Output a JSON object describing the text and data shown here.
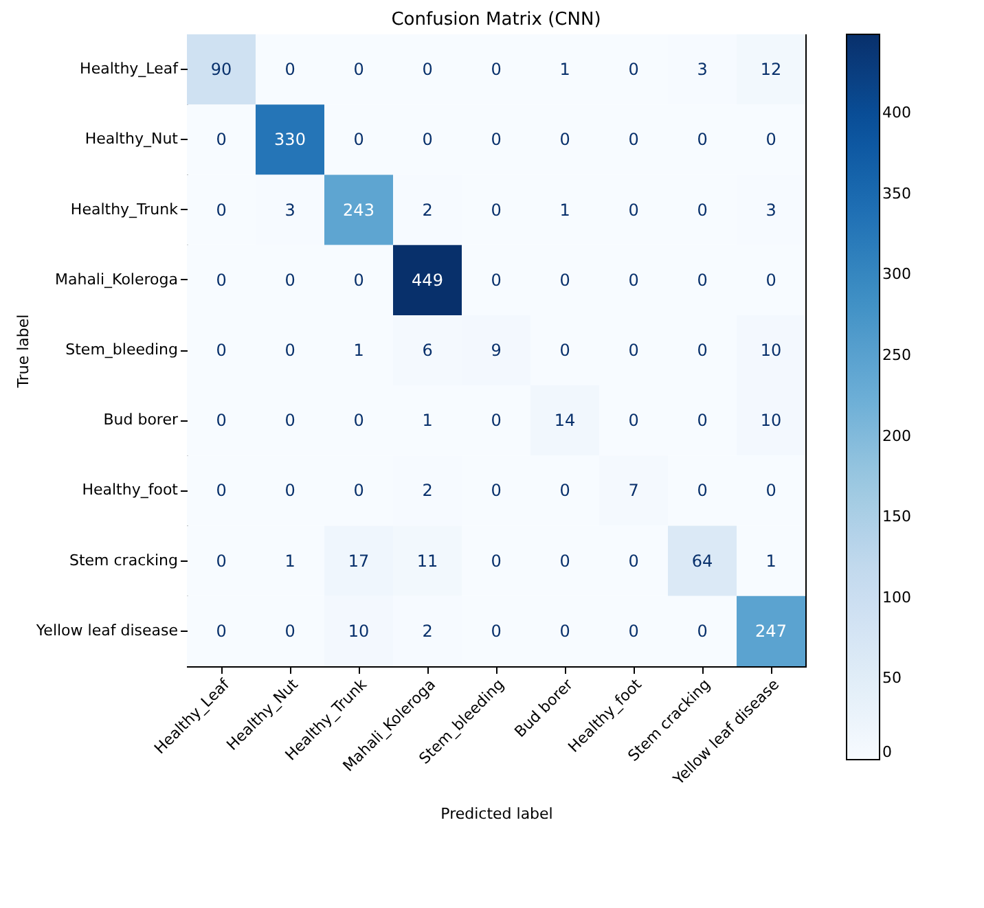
{
  "chart_data": {
    "type": "heatmap",
    "title": "Confusion Matrix (CNN)",
    "xlabel": "Predicted label",
    "ylabel": "True label",
    "categories": [
      "Healthy_Leaf",
      "Healthy_Nut",
      "Healthy_Trunk",
      "Mahali_Koleroga",
      "Stem_bleeding",
      "Bud borer",
      "Healthy_foot",
      "Stem cracking",
      "Yellow leaf disease"
    ],
    "y_categories": [
      "Healthy_Leaf",
      "Healthy_Nut",
      "Healthy_Trunk",
      "Mahali_Koleroga",
      "Stem_bleeding",
      "Bud borer",
      "Healthy_foot",
      "Stem cracking",
      "Yellow leaf disease"
    ],
    "cells": [
      [
        90,
        0,
        0,
        0,
        0,
        1,
        0,
        3,
        12
      ],
      [
        0,
        330,
        0,
        0,
        0,
        0,
        0,
        0,
        0
      ],
      [
        0,
        3,
        243,
        2,
        0,
        1,
        0,
        0,
        3
      ],
      [
        0,
        0,
        0,
        449,
        0,
        0,
        0,
        0,
        0
      ],
      [
        0,
        0,
        1,
        6,
        9,
        0,
        0,
        0,
        10
      ],
      [
        0,
        0,
        0,
        1,
        0,
        14,
        0,
        0,
        10
      ],
      [
        0,
        0,
        0,
        2,
        0,
        0,
        7,
        0,
        0
      ],
      [
        0,
        1,
        17,
        11,
        0,
        0,
        0,
        64,
        1
      ],
      [
        0,
        0,
        10,
        2,
        0,
        0,
        0,
        0,
        247
      ]
    ],
    "clim": [
      0,
      449
    ],
    "cticks": [
      0,
      50,
      100,
      150,
      200,
      250,
      300,
      350,
      400
    ],
    "data_labels": true
  }
}
